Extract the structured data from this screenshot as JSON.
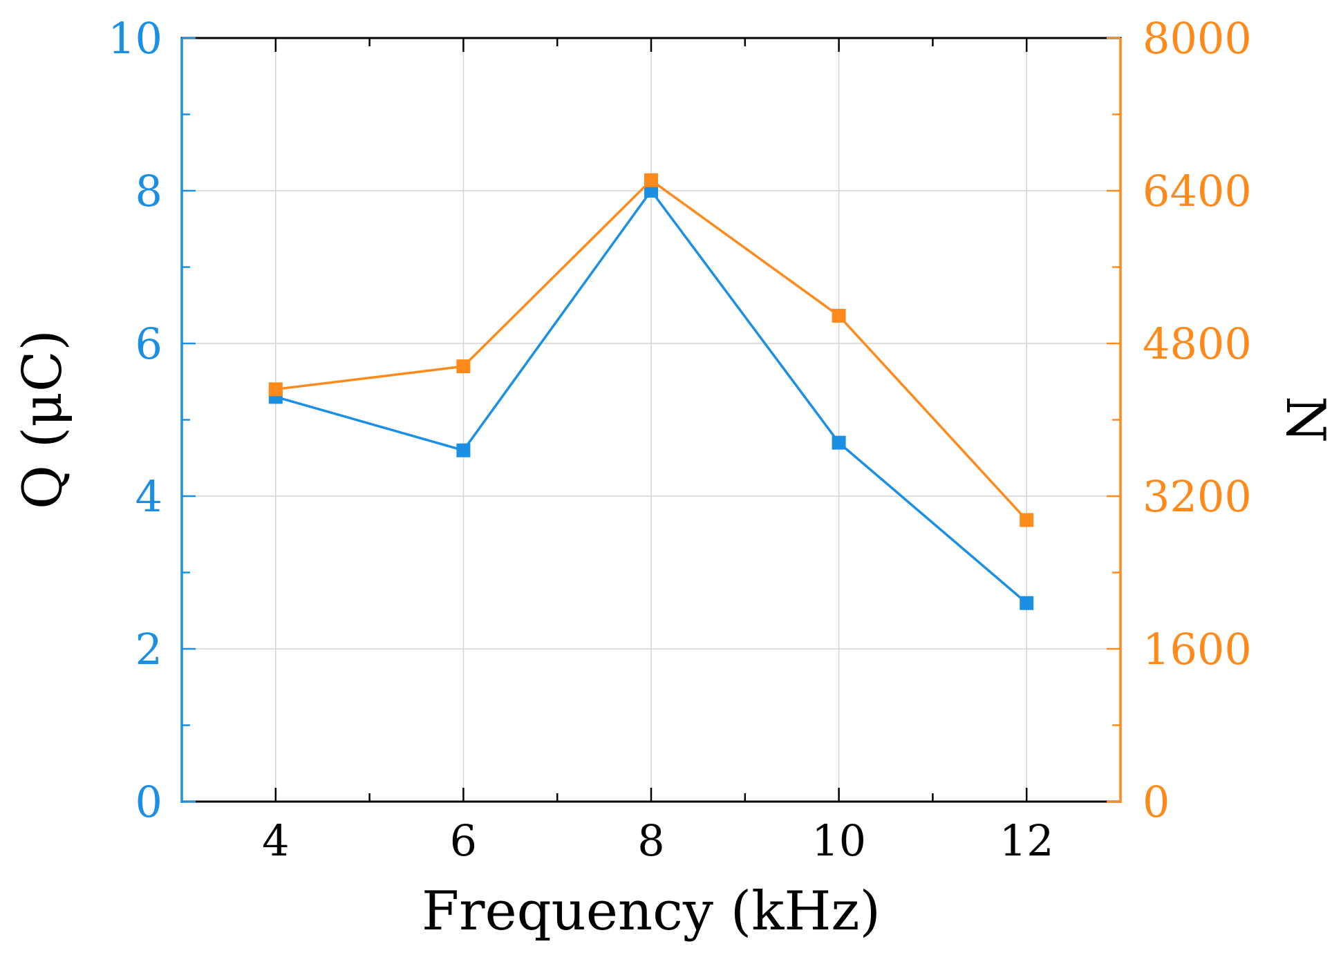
{
  "chart_data": {
    "type": "line",
    "x": [
      4,
      6,
      8,
      10,
      12
    ],
    "series": [
      {
        "name": "Q",
        "axis": "left",
        "color": "#1a8fe3",
        "values": [
          5.3,
          4.6,
          8.0,
          4.7,
          2.6
        ]
      },
      {
        "name": "N",
        "axis": "right",
        "color": "#ff8a1c",
        "values": [
          4320,
          4560,
          6510,
          5090,
          2950
        ]
      }
    ],
    "xlabel": "Frequency (kHz)",
    "ylabel_left": "Q (μC)",
    "ylabel_right": "N",
    "xlim": [
      3,
      13
    ],
    "ylim_left": [
      0,
      10
    ],
    "ylim_right": [
      0,
      8000
    ],
    "x_ticks": [
      "4",
      "6",
      "8",
      "10",
      "12"
    ],
    "y_left_ticks": [
      "0",
      "2",
      "4",
      "6",
      "8",
      "10"
    ],
    "y_right_ticks": [
      "0",
      "1600",
      "3200",
      "4800",
      "6400",
      "8000"
    ],
    "grid": true,
    "marker": "square"
  },
  "colors": {
    "left_axis": "#1a8fe3",
    "right_axis": "#ff8a1c",
    "grid": "#d4d4d4"
  }
}
